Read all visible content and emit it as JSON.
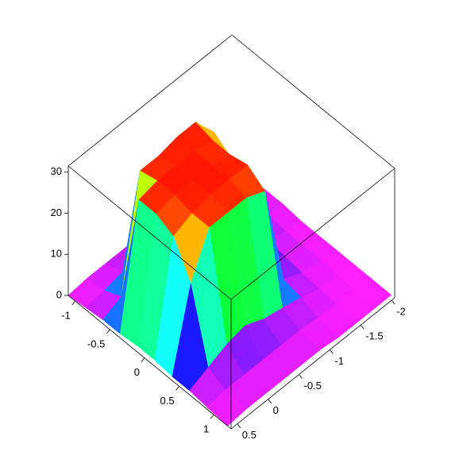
{
  "chart_data": {
    "type": "surface",
    "x": [
      -1.1,
      -0.85,
      -0.6,
      -0.35,
      -0.1,
      0.15,
      0.4,
      0.65,
      0.9,
      1.2
    ],
    "y": [
      0.6,
      0.3,
      0,
      -0.3,
      -0.6,
      -0.9,
      -1.2,
      -1.5,
      -1.8,
      -2.05
    ],
    "z": [
      [
        0,
        0.5,
        1,
        1,
        1.5,
        1.5,
        1,
        1,
        0.5,
        0
      ],
      [
        0.5,
        1,
        3,
        30,
        30,
        28,
        20,
        3,
        1,
        0.5
      ],
      [
        0.5,
        2,
        30,
        31,
        31,
        30,
        30,
        5,
        1,
        0.5
      ],
      [
        0.5,
        3,
        30,
        31,
        31,
        31,
        30,
        6,
        1,
        0.5
      ],
      [
        0.5,
        3,
        31,
        31,
        31,
        31,
        30,
        4,
        1,
        0.5
      ],
      [
        0.5,
        2,
        31,
        30,
        30,
        31,
        28,
        3,
        1,
        0.5
      ],
      [
        0.5,
        1,
        25,
        22,
        8,
        6,
        3,
        2,
        0.5,
        0
      ],
      [
        0,
        1,
        4,
        3,
        2,
        1.5,
        1,
        0.5,
        0.5,
        0
      ],
      [
        0,
        0.5,
        1,
        1,
        0.5,
        0.5,
        0.5,
        0,
        0,
        0
      ],
      [
        0,
        0,
        0.5,
        0.5,
        0,
        0,
        0,
        0,
        0,
        0
      ]
    ],
    "xlim": [
      -1.1,
      1.25
    ],
    "ylim": [
      0.6,
      -2.05
    ],
    "zlim": [
      0,
      31.5
    ],
    "xticks": [
      -1,
      -0.5,
      0,
      0.5,
      1
    ],
    "yticks": [
      0.5,
      0,
      -0.5,
      -1,
      -1.5,
      -2
    ],
    "zticks": [
      0,
      10,
      20,
      30
    ]
  }
}
